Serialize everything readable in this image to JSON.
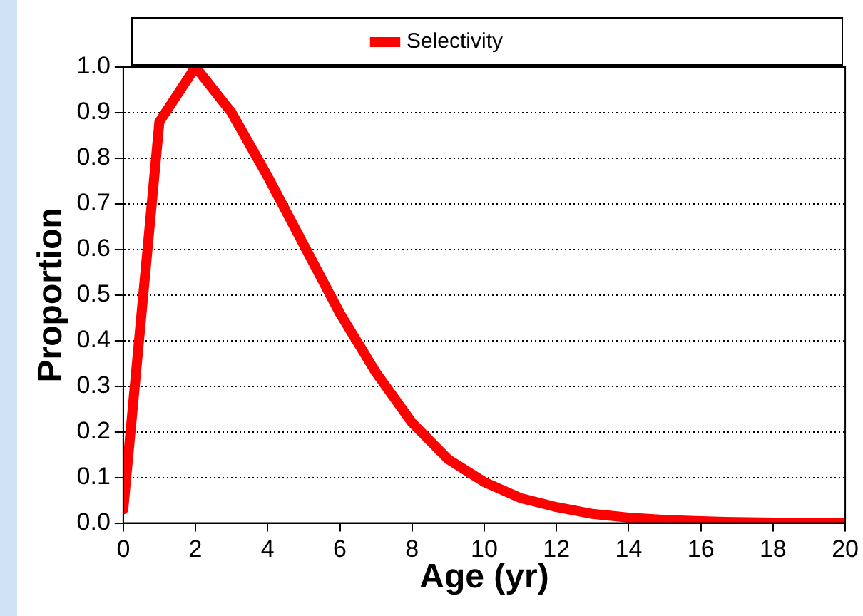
{
  "chart_data": {
    "type": "line",
    "xlabel": "Age (yr)",
    "ylabel": "Proportion",
    "x": [
      0,
      1,
      2,
      3,
      4,
      5,
      6,
      7,
      8,
      9,
      10,
      11,
      12,
      13,
      14,
      15,
      16,
      17,
      18,
      19,
      20
    ],
    "series": [
      {
        "name": "Selectivity",
        "color": "#ff0000",
        "values": [
          0.03,
          0.88,
          1.0,
          0.9,
          0.76,
          0.61,
          0.46,
          0.33,
          0.22,
          0.14,
          0.09,
          0.055,
          0.035,
          0.02,
          0.012,
          0.007,
          0.004,
          0.002,
          0.001,
          0.001,
          0.0
        ]
      }
    ],
    "xlim": [
      0,
      20
    ],
    "xticks": [
      0,
      2,
      4,
      6,
      8,
      10,
      12,
      14,
      16,
      18,
      20
    ],
    "ylim": [
      0,
      1
    ],
    "yticks": [
      {
        "value": 0,
        "label": "0.0"
      },
      0.1,
      0.2,
      0.3,
      0.4,
      0.5,
      0.6,
      0.7,
      0.8,
      0.9,
      {
        "value": 1,
        "label": "1.0"
      }
    ],
    "grid": "y",
    "legend": "top",
    "marker": "none",
    "line_style": "solid"
  }
}
